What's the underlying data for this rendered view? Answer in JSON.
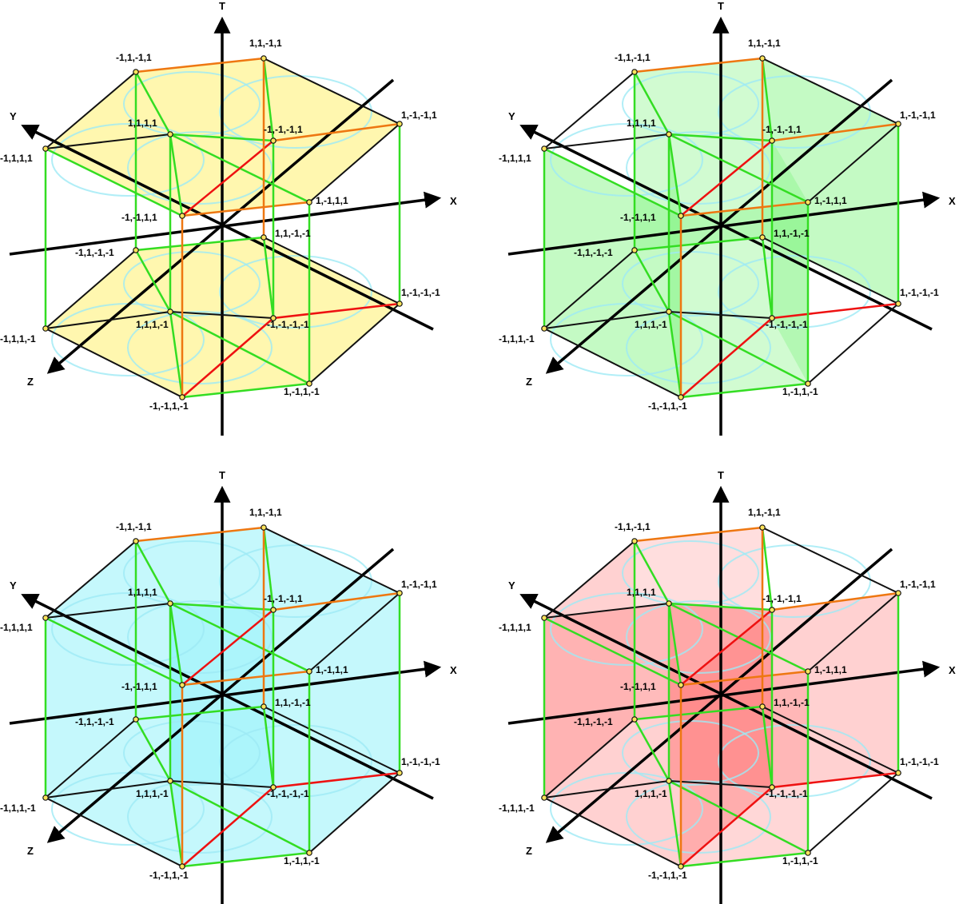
{
  "axes": {
    "t": "T",
    "x": "X",
    "y": "Y",
    "z": "Z"
  },
  "vertices": [
    {
      "id": "A",
      "label": "-1,1,-1,1"
    },
    {
      "id": "B",
      "label": "1,1,-1,1"
    },
    {
      "id": "C",
      "label": "1,1,1,1"
    },
    {
      "id": "D",
      "label": "-1,-1,-1,1"
    },
    {
      "id": "E",
      "label": "1,-1,-1,1"
    },
    {
      "id": "F",
      "label": "-1,1,1,1"
    },
    {
      "id": "G",
      "label": "-1,-1,1,1"
    },
    {
      "id": "H",
      "label": "1,-1,1,1"
    },
    {
      "id": "I",
      "label": "1,1,-1,-1"
    },
    {
      "id": "J",
      "label": "-1,1,-1,-1"
    },
    {
      "id": "K",
      "label": "1,-1,-1,-1"
    },
    {
      "id": "L",
      "label": "1,1,1,-1"
    },
    {
      "id": "M",
      "label": "-1,-1,-1,-1"
    },
    {
      "id": "N",
      "label": "-1,1,1,-1"
    },
    {
      "id": "O",
      "label": "-1,-1,1,-1"
    },
    {
      "id": "P",
      "label": "1,-1,1,-1"
    }
  ],
  "panels": [
    {
      "id": "top-left",
      "highlight": "yellow",
      "fill": "#fff06e"
    },
    {
      "id": "top-right",
      "highlight": "green",
      "fill": "#7cf47c"
    },
    {
      "id": "bottom-left",
      "highlight": "cyan",
      "fill": "#7ef0f8"
    },
    {
      "id": "bottom-right",
      "highlight": "red",
      "fill": "#ff7b7b"
    }
  ],
  "colors": {
    "axis": "#000000",
    "green_edge": "#33dd22",
    "orange_edge": "#ee7711",
    "red_edge": "#ee1111",
    "circle": "#9eeaf5",
    "vertex": "#111111"
  }
}
